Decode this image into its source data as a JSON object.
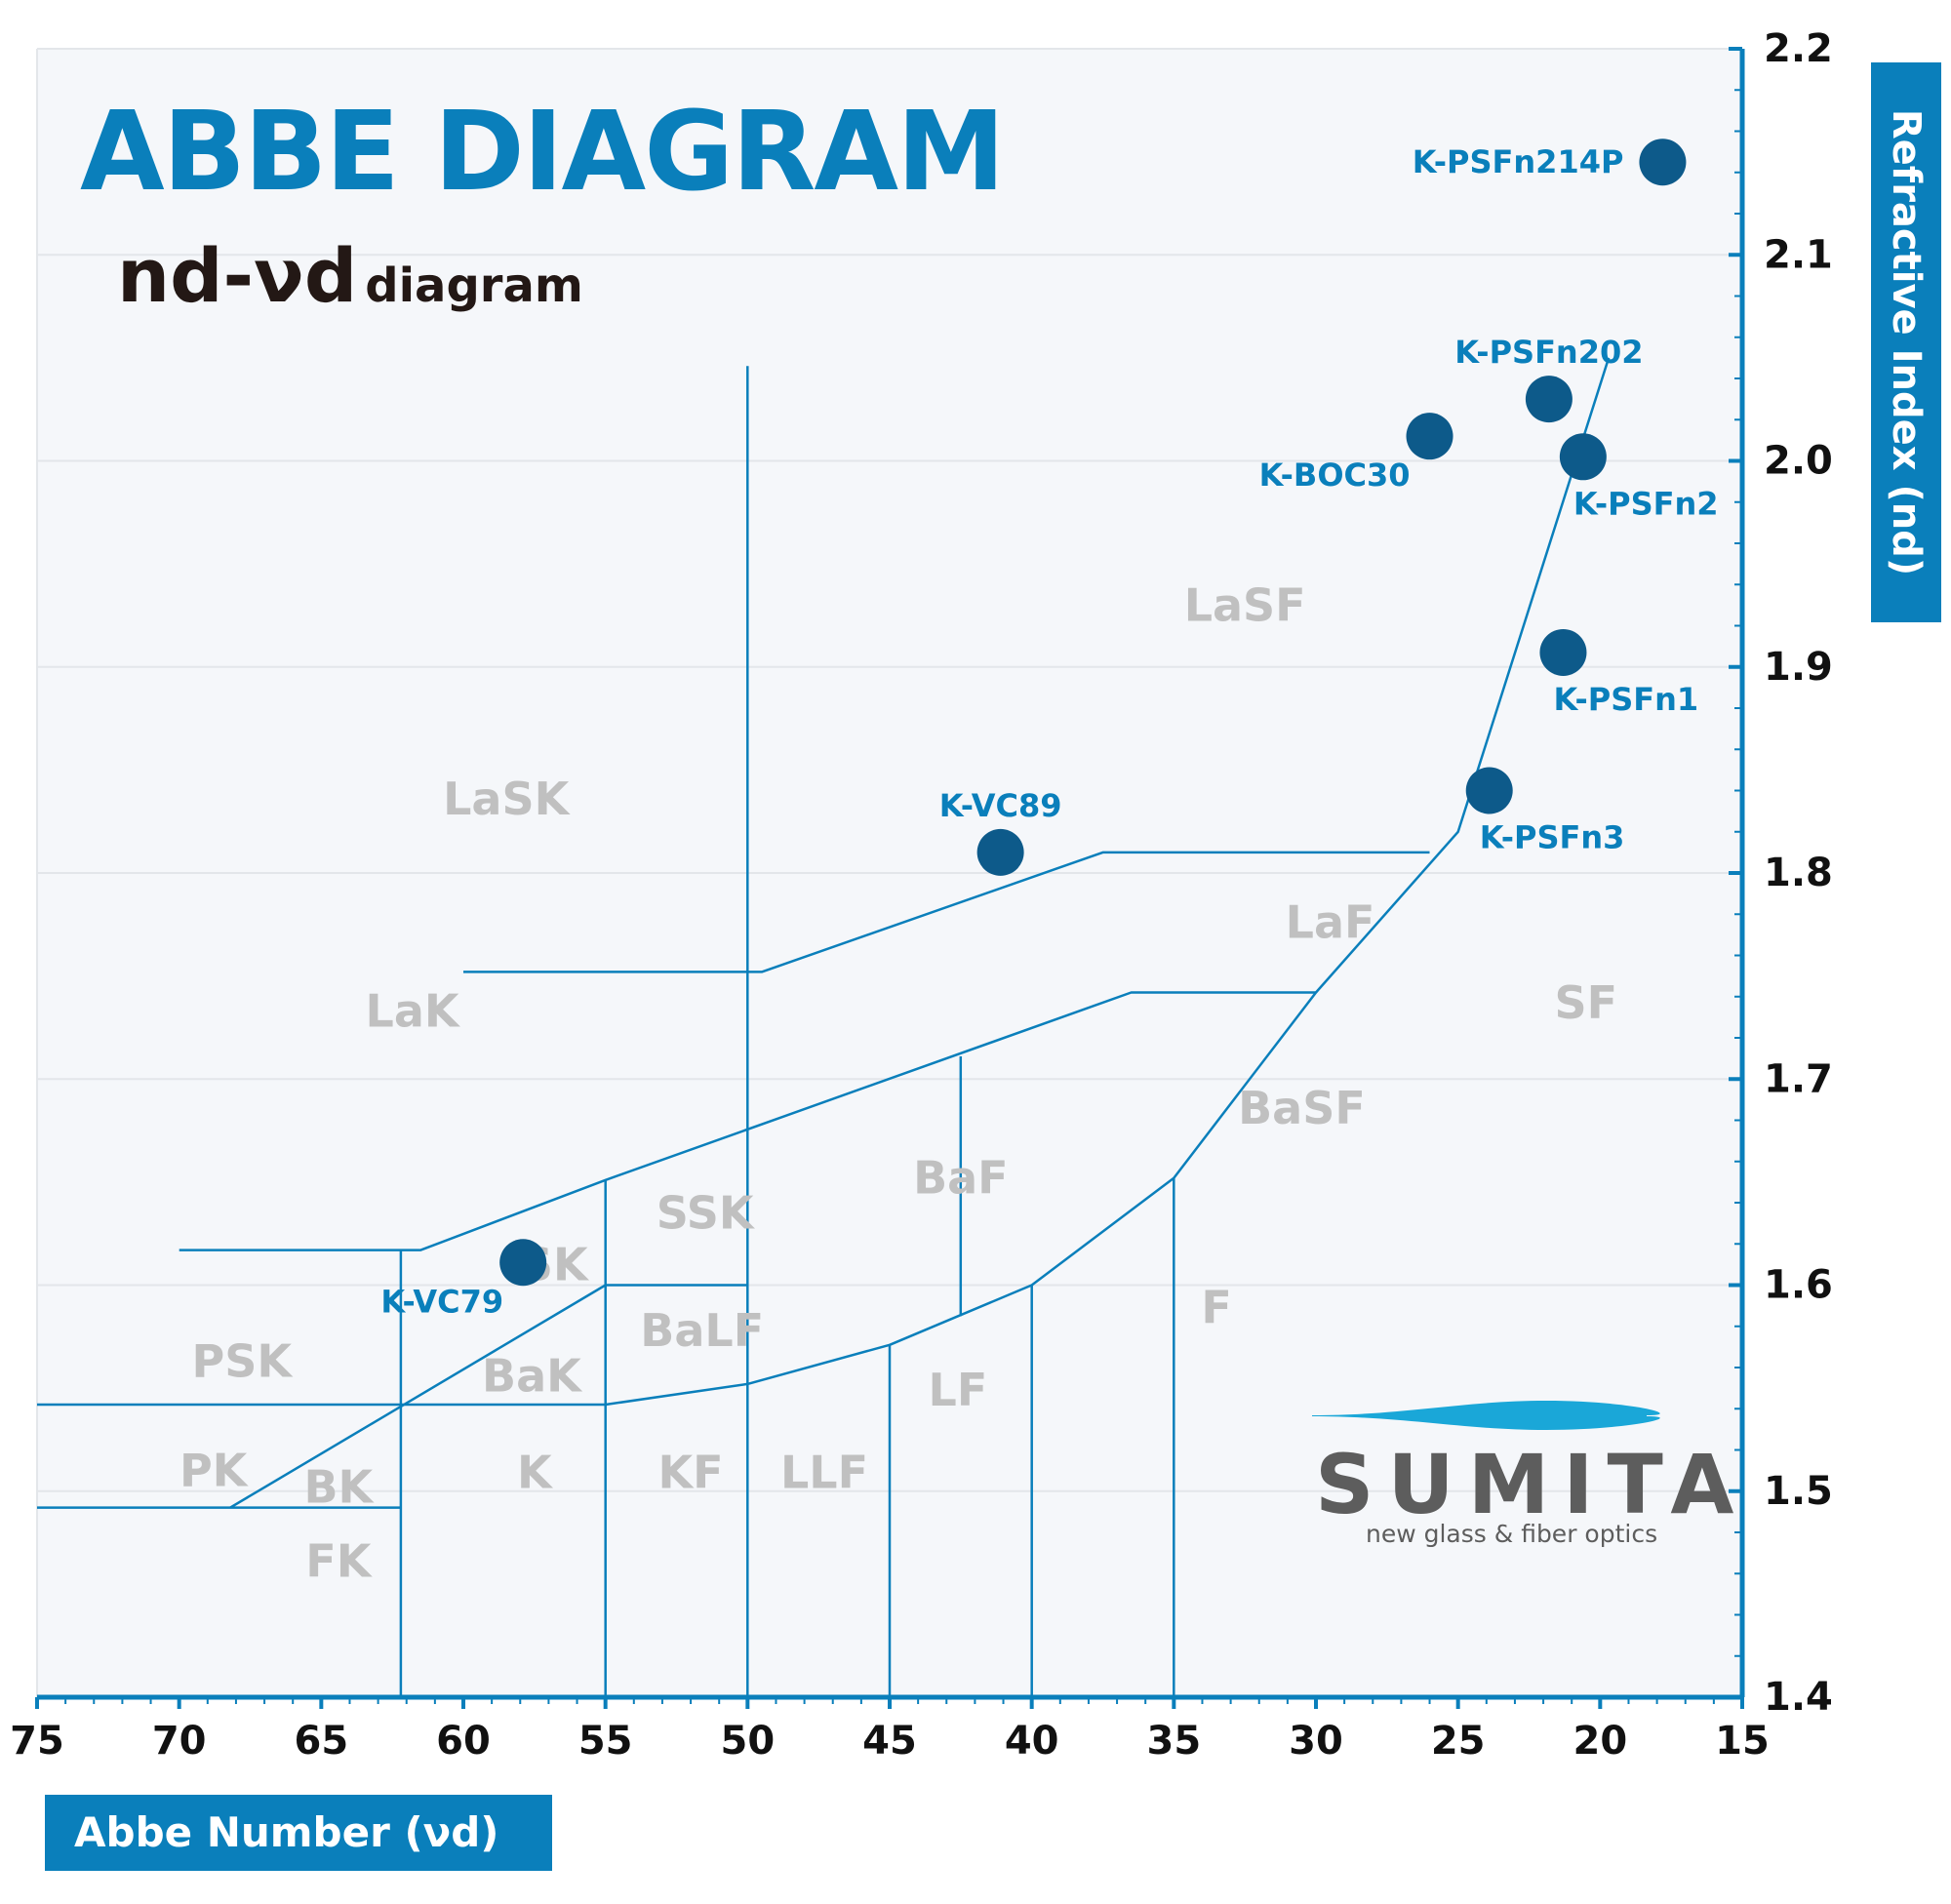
{
  "header": {
    "title": "ABBE DIAGRAM",
    "subtitle_main": "nd-νd",
    "subtitle_small": "diagram"
  },
  "logo": {
    "name": "SUMITA",
    "tagline": "new glass & fiber optics"
  },
  "colors": {
    "accent": "#0a7fbb",
    "point": "#0d5a8a",
    "region_label": "#c0c0c0",
    "grid": "#e3e6ea"
  },
  "chart_data": {
    "type": "scatter",
    "xlabel": "Abbe Number (νd)",
    "ylabel": "Refractive Index (nd)",
    "xlim": [
      75,
      15
    ],
    "ylim": [
      1.4,
      2.2
    ],
    "x_reversed": true,
    "grid": true,
    "x_ticks": [
      "75",
      "70",
      "65",
      "60",
      "55",
      "50",
      "45",
      "40",
      "35",
      "30",
      "25",
      "20",
      "15"
    ],
    "y_ticks": [
      "1.4",
      "1.5",
      "1.6",
      "1.7",
      "1.8",
      "1.9",
      "2.0",
      "2.1",
      "2.2"
    ],
    "points": [
      {
        "name": "K-PSFn214P",
        "x": 17.8,
        "y": 2.145,
        "label_side": "left"
      },
      {
        "name": "K-PSFn202",
        "x": 21.8,
        "y": 2.03,
        "label_side": "above"
      },
      {
        "name": "K-BOC30",
        "x": 26.0,
        "y": 2.012,
        "label_side": "below-left"
      },
      {
        "name": "K-PSFn2",
        "x": 20.6,
        "y": 2.002,
        "label_side": "below-right"
      },
      {
        "name": "K-PSFn1",
        "x": 21.3,
        "y": 1.907,
        "label_side": "below-right"
      },
      {
        "name": "K-PSFn3",
        "x": 23.9,
        "y": 1.84,
        "label_side": "below-right"
      },
      {
        "name": "K-VC89",
        "x": 41.1,
        "y": 1.81,
        "label_side": "above"
      },
      {
        "name": "K-VC79",
        "x": 57.9,
        "y": 1.611,
        "label_side": "below-left"
      }
    ],
    "region_labels": [
      {
        "name": "LaSF",
        "x": 32.5,
        "y": 1.93
      },
      {
        "name": "LaSK",
        "x": 58.5,
        "y": 1.836
      },
      {
        "name": "LaF",
        "x": 29.5,
        "y": 1.776
      },
      {
        "name": "LaK",
        "x": 61.8,
        "y": 1.733
      },
      {
        "name": "SF",
        "x": 20.5,
        "y": 1.737
      },
      {
        "name": "BaSF",
        "x": 30.5,
        "y": 1.686
      },
      {
        "name": "BaF",
        "x": 42.5,
        "y": 1.652
      },
      {
        "name": "SSK",
        "x": 51.5,
        "y": 1.635
      },
      {
        "name": "SK",
        "x": 56.8,
        "y": 1.61
      },
      {
        "name": "F",
        "x": 33.5,
        "y": 1.589
      },
      {
        "name": "BaLF",
        "x": 51.6,
        "y": 1.578
      },
      {
        "name": "PSK",
        "x": 67.8,
        "y": 1.563
      },
      {
        "name": "BaK",
        "x": 57.6,
        "y": 1.556
      },
      {
        "name": "LF",
        "x": 42.6,
        "y": 1.549
      },
      {
        "name": "PK",
        "x": 68.8,
        "y": 1.51
      },
      {
        "name": "K",
        "x": 57.5,
        "y": 1.509
      },
      {
        "name": "KF",
        "x": 52.0,
        "y": 1.509
      },
      {
        "name": "LLF",
        "x": 47.3,
        "y": 1.509
      },
      {
        "name": "BK",
        "x": 64.4,
        "y": 1.502
      },
      {
        "name": "FK",
        "x": 64.4,
        "y": 1.466
      }
    ],
    "boundaries": [
      [
        [
          19.7,
          2.05
        ],
        [
          25.0,
          1.82
        ],
        [
          30.0,
          1.742
        ],
        [
          35.0,
          1.652
        ],
        [
          40.0,
          1.6
        ],
        [
          45.0,
          1.571
        ],
        [
          50.0,
          1.552
        ],
        [
          55.0,
          1.542
        ],
        [
          75.0,
          1.542
        ]
      ],
      [
        [
          26.0,
          1.81
        ],
        [
          37.5,
          1.81
        ],
        [
          49.5,
          1.752
        ],
        [
          60.0,
          1.752
        ]
      ],
      [
        [
          30.0,
          1.742
        ],
        [
          36.5,
          1.742
        ],
        [
          55.0,
          1.651
        ],
        [
          61.5,
          1.617
        ],
        [
          70.0,
          1.617
        ]
      ],
      [
        [
          55.0,
          1.6
        ],
        [
          68.2,
          1.492
        ]
      ],
      [
        [
          62.2,
          1.492
        ],
        [
          75.0,
          1.492
        ]
      ],
      [
        [
          50.0,
          2.046
        ],
        [
          50.0,
          1.4
        ]
      ],
      [
        [
          62.2,
          1.617
        ],
        [
          62.2,
          1.4
        ]
      ],
      [
        [
          55.0,
          1.651
        ],
        [
          55.0,
          1.4
        ]
      ],
      [
        [
          45.0,
          1.571
        ],
        [
          45.0,
          1.4
        ]
      ],
      [
        [
          40.0,
          1.6
        ],
        [
          40.0,
          1.4
        ]
      ],
      [
        [
          35.0,
          1.652
        ],
        [
          35.0,
          1.4
        ]
      ],
      [
        [
          42.5,
          1.711
        ],
        [
          42.5,
          1.585
        ]
      ],
      [
        [
          50.0,
          1.6
        ],
        [
          55.0,
          1.6
        ]
      ]
    ]
  }
}
